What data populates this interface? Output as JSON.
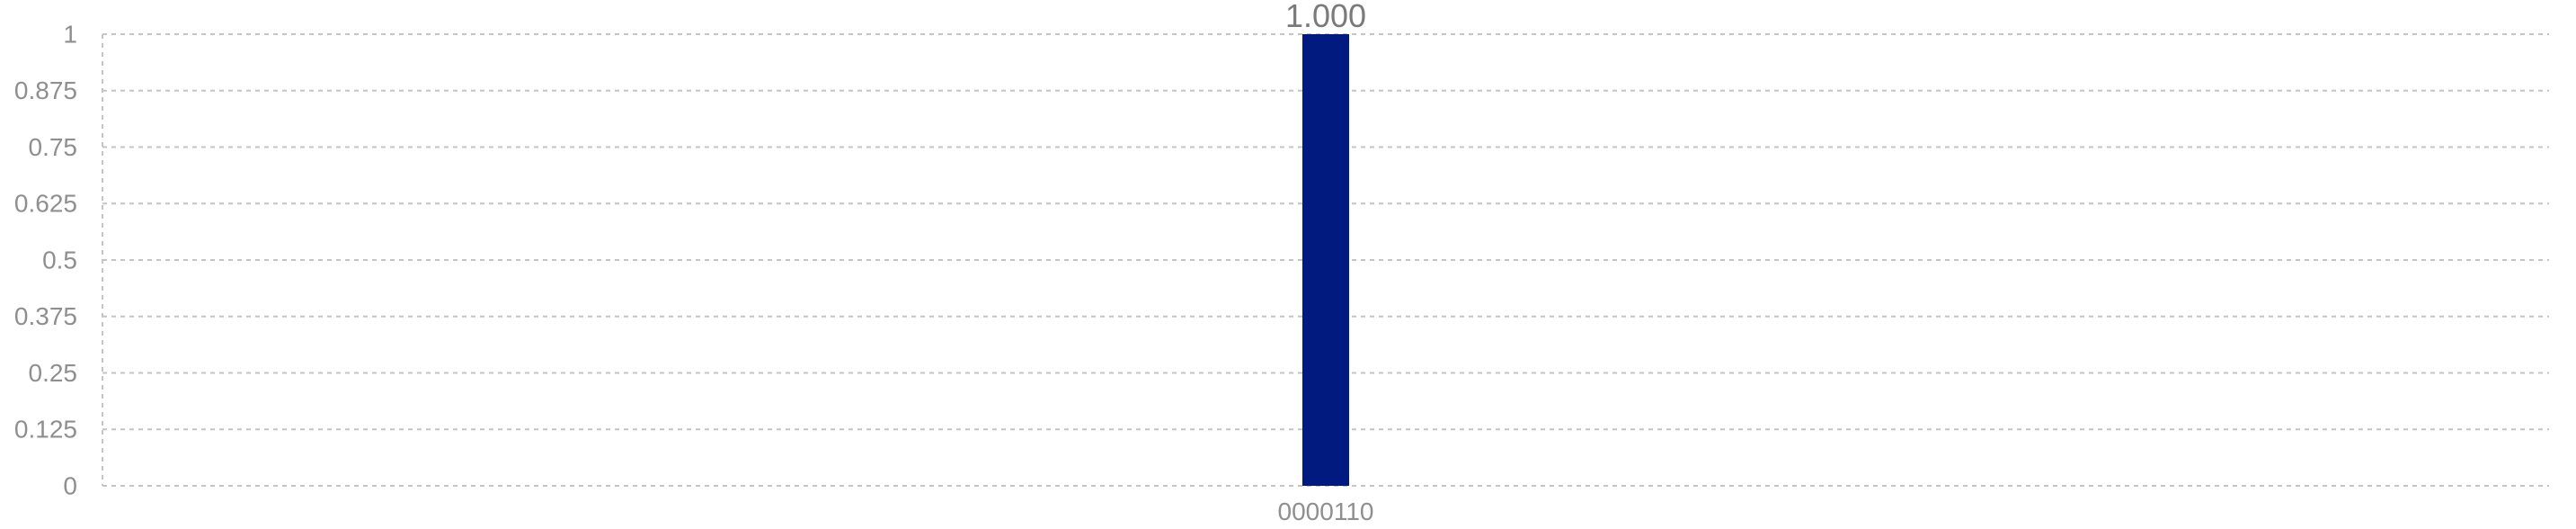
{
  "chart_data": {
    "type": "bar",
    "categories": [
      "0000110"
    ],
    "values": [
      1.0
    ],
    "value_labels": [
      "1.000"
    ],
    "yticks": [
      "0",
      "0.125",
      "0.25",
      "0.375",
      "0.5",
      "0.625",
      "0.75",
      "0.875",
      "1"
    ],
    "ylim": [
      0,
      1
    ],
    "grid": true,
    "bar_color": "#001a80",
    "grid_color": "#c4c4c4",
    "tick_color": "#8f8f8f"
  }
}
